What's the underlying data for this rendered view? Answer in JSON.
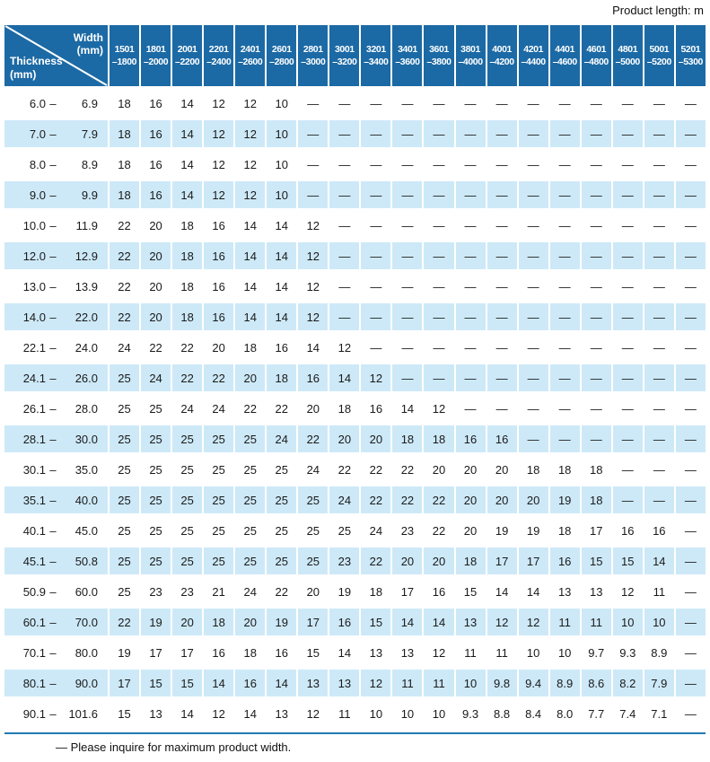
{
  "page": {
    "product_length_label": "Product length: m",
    "footnote": "— Please inquire for maximum product width."
  },
  "colors": {
    "header_blue": "#1c6aa5",
    "row_shade_blue": "#cde9f8",
    "rule_blue": "#2379b2"
  },
  "table": {
    "corner": {
      "top_line1": "Width",
      "top_line2": "(mm)",
      "bottom_line1": "Thickness",
      "bottom_line2": "(mm)"
    },
    "columns": [
      {
        "line1": "1501",
        "line2": "–1800"
      },
      {
        "line1": "1801",
        "line2": "–2000"
      },
      {
        "line1": "2001",
        "line2": "–2200"
      },
      {
        "line1": "2201",
        "line2": "–2400"
      },
      {
        "line1": "2401",
        "line2": "–2600"
      },
      {
        "line1": "2601",
        "line2": "–2800"
      },
      {
        "line1": "2801",
        "line2": "–3000"
      },
      {
        "line1": "3001",
        "line2": "–3200"
      },
      {
        "line1": "3201",
        "line2": "–3400"
      },
      {
        "line1": "3401",
        "line2": "–3600"
      },
      {
        "line1": "3601",
        "line2": "–3800"
      },
      {
        "line1": "3801",
        "line2": "–4000"
      },
      {
        "line1": "4001",
        "line2": "–4200"
      },
      {
        "line1": "4201",
        "line2": "–4400"
      },
      {
        "line1": "4401",
        "line2": "–4600"
      },
      {
        "line1": "4601",
        "line2": "–4800"
      },
      {
        "line1": "4801",
        "line2": "–5000"
      },
      {
        "line1": "5001",
        "line2": "–5200"
      },
      {
        "line1": "5201",
        "line2": "–5300"
      }
    ],
    "range_dash": "–",
    "rows": [
      {
        "min": "6.0",
        "max": "6.9",
        "shaded": false,
        "values": [
          "18",
          "16",
          "14",
          "12",
          "12",
          "10",
          "—",
          "—",
          "—",
          "—",
          "—",
          "—",
          "—",
          "—",
          "—",
          "—",
          "—",
          "—",
          "—"
        ]
      },
      {
        "min": "7.0",
        "max": "7.9",
        "shaded": true,
        "values": [
          "18",
          "16",
          "14",
          "12",
          "12",
          "10",
          "—",
          "—",
          "—",
          "—",
          "—",
          "—",
          "—",
          "—",
          "—",
          "—",
          "—",
          "—",
          "—"
        ]
      },
      {
        "min": "8.0",
        "max": "8.9",
        "shaded": false,
        "values": [
          "18",
          "16",
          "14",
          "12",
          "12",
          "10",
          "—",
          "—",
          "—",
          "—",
          "—",
          "—",
          "—",
          "—",
          "—",
          "—",
          "—",
          "—",
          "—"
        ]
      },
      {
        "min": "9.0",
        "max": "9.9",
        "shaded": true,
        "values": [
          "18",
          "16",
          "14",
          "12",
          "12",
          "10",
          "—",
          "—",
          "—",
          "—",
          "—",
          "—",
          "—",
          "—",
          "—",
          "—",
          "—",
          "—",
          "—"
        ]
      },
      {
        "min": "10.0",
        "max": "11.9",
        "shaded": false,
        "values": [
          "22",
          "20",
          "18",
          "16",
          "14",
          "14",
          "12",
          "—",
          "—",
          "—",
          "—",
          "—",
          "—",
          "—",
          "—",
          "—",
          "—",
          "—",
          "—"
        ]
      },
      {
        "min": "12.0",
        "max": "12.9",
        "shaded": true,
        "values": [
          "22",
          "20",
          "18",
          "16",
          "14",
          "14",
          "12",
          "—",
          "—",
          "—",
          "—",
          "—",
          "—",
          "—",
          "—",
          "—",
          "—",
          "—",
          "—"
        ]
      },
      {
        "min": "13.0",
        "max": "13.9",
        "shaded": false,
        "values": [
          "22",
          "20",
          "18",
          "16",
          "14",
          "14",
          "12",
          "—",
          "—",
          "—",
          "—",
          "—",
          "—",
          "—",
          "—",
          "—",
          "—",
          "—",
          "—"
        ]
      },
      {
        "min": "14.0",
        "max": "22.0",
        "shaded": true,
        "values": [
          "22",
          "20",
          "18",
          "16",
          "14",
          "14",
          "12",
          "—",
          "—",
          "—",
          "—",
          "—",
          "—",
          "—",
          "—",
          "—",
          "—",
          "—",
          "—"
        ]
      },
      {
        "min": "22.1",
        "max": "24.0",
        "shaded": false,
        "values": [
          "24",
          "22",
          "22",
          "20",
          "18",
          "16",
          "14",
          "12",
          "—",
          "—",
          "—",
          "—",
          "—",
          "—",
          "—",
          "—",
          "—",
          "—",
          "—"
        ]
      },
      {
        "min": "24.1",
        "max": "26.0",
        "shaded": true,
        "values": [
          "25",
          "24",
          "22",
          "22",
          "20",
          "18",
          "16",
          "14",
          "12",
          "—",
          "—",
          "—",
          "—",
          "—",
          "—",
          "—",
          "—",
          "—",
          "—"
        ]
      },
      {
        "min": "26.1",
        "max": "28.0",
        "shaded": false,
        "values": [
          "25",
          "25",
          "24",
          "24",
          "22",
          "22",
          "20",
          "18",
          "16",
          "14",
          "12",
          "—",
          "—",
          "—",
          "—",
          "—",
          "—",
          "—",
          "—"
        ]
      },
      {
        "min": "28.1",
        "max": "30.0",
        "shaded": true,
        "values": [
          "25",
          "25",
          "25",
          "25",
          "25",
          "24",
          "22",
          "20",
          "20",
          "18",
          "18",
          "16",
          "16",
          "—",
          "—",
          "—",
          "—",
          "—",
          "—"
        ]
      },
      {
        "min": "30.1",
        "max": "35.0",
        "shaded": false,
        "values": [
          "25",
          "25",
          "25",
          "25",
          "25",
          "25",
          "24",
          "22",
          "22",
          "22",
          "20",
          "20",
          "20",
          "18",
          "18",
          "18",
          "—",
          "—",
          "—"
        ]
      },
      {
        "min": "35.1",
        "max": "40.0",
        "shaded": true,
        "values": [
          "25",
          "25",
          "25",
          "25",
          "25",
          "25",
          "25",
          "24",
          "22",
          "22",
          "22",
          "20",
          "20",
          "20",
          "19",
          "18",
          "—",
          "—",
          "—"
        ]
      },
      {
        "min": "40.1",
        "max": "45.0",
        "shaded": false,
        "values": [
          "25",
          "25",
          "25",
          "25",
          "25",
          "25",
          "25",
          "25",
          "24",
          "23",
          "22",
          "20",
          "19",
          "19",
          "18",
          "17",
          "16",
          "16",
          "—"
        ]
      },
      {
        "min": "45.1",
        "max": "50.8",
        "shaded": true,
        "values": [
          "25",
          "25",
          "25",
          "25",
          "25",
          "25",
          "25",
          "23",
          "22",
          "20",
          "20",
          "18",
          "17",
          "17",
          "16",
          "15",
          "15",
          "14",
          "—"
        ]
      },
      {
        "min": "50.9",
        "max": "60.0",
        "shaded": false,
        "values": [
          "25",
          "23",
          "23",
          "21",
          "24",
          "22",
          "20",
          "19",
          "18",
          "17",
          "16",
          "15",
          "14",
          "14",
          "13",
          "13",
          "12",
          "11",
          "—"
        ]
      },
      {
        "min": "60.1",
        "max": "70.0",
        "shaded": true,
        "values": [
          "22",
          "19",
          "20",
          "18",
          "20",
          "19",
          "17",
          "16",
          "15",
          "14",
          "14",
          "13",
          "12",
          "12",
          "11",
          "11",
          "10",
          "10",
          "—"
        ]
      },
      {
        "min": "70.1",
        "max": "80.0",
        "shaded": false,
        "values": [
          "19",
          "17",
          "17",
          "16",
          "18",
          "16",
          "15",
          "14",
          "13",
          "13",
          "12",
          "11",
          "11",
          "10",
          "10",
          "9.7",
          "9.3",
          "8.9",
          "—"
        ]
      },
      {
        "min": "80.1",
        "max": "90.0",
        "shaded": true,
        "values": [
          "17",
          "15",
          "15",
          "14",
          "16",
          "14",
          "13",
          "13",
          "12",
          "11",
          "11",
          "10",
          "9.8",
          "9.4",
          "8.9",
          "8.6",
          "8.2",
          "7.9",
          "—"
        ]
      },
      {
        "min": "90.1",
        "max": "101.6",
        "shaded": false,
        "values": [
          "15",
          "13",
          "14",
          "12",
          "14",
          "13",
          "12",
          "11",
          "10",
          "10",
          "10",
          "9.3",
          "8.8",
          "8.4",
          "8.0",
          "7.7",
          "7.4",
          "7.1",
          "—"
        ]
      }
    ]
  }
}
